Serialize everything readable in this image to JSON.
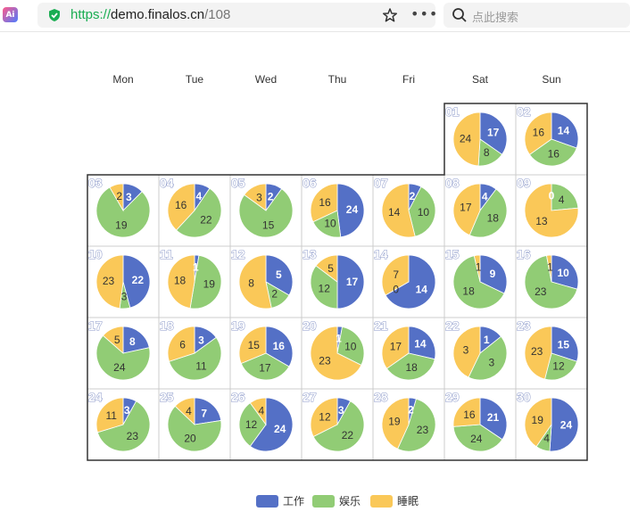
{
  "browser": {
    "url_protocol": "https://",
    "url_host": "demo.finalos.cn",
    "url_path": "/108",
    "search_placeholder": "点此搜索",
    "icons": [
      "app-logo-icon",
      "secure-shield-icon",
      "favorite-star-icon",
      "more-icon",
      "search-icon"
    ]
  },
  "colors": {
    "work": "#5470c6",
    "play": "#91cc75",
    "sleep": "#fac858"
  },
  "chart_data": {
    "type": "pie",
    "layout": "calendar",
    "weekdays": [
      "Mon",
      "Tue",
      "Wed",
      "Thu",
      "Fri",
      "Sat",
      "Sun"
    ],
    "series_names": [
      "工作",
      "娱乐",
      "睡眠"
    ],
    "days": [
      {
        "label": "01",
        "values": [
          17,
          8,
          24
        ]
      },
      {
        "label": "02",
        "values": [
          14,
          16,
          16
        ]
      },
      {
        "label": "03",
        "values": [
          3,
          19,
          2
        ]
      },
      {
        "label": "04",
        "values": [
          4,
          22,
          16
        ]
      },
      {
        "label": "05",
        "values": [
          2,
          15,
          3
        ]
      },
      {
        "label": "06",
        "values": [
          24,
          10,
          16
        ]
      },
      {
        "label": "07",
        "values": [
          2,
          10,
          14
        ]
      },
      {
        "label": "08",
        "values": [
          4,
          18,
          17
        ]
      },
      {
        "label": "09",
        "values": [
          0,
          4,
          13
        ]
      },
      {
        "label": "10",
        "values": [
          22,
          3,
          23
        ]
      },
      {
        "label": "11",
        "values": [
          1,
          19,
          18
        ]
      },
      {
        "label": "12",
        "values": [
          5,
          2,
          8
        ]
      },
      {
        "label": "13",
        "values": [
          17,
          12,
          5
        ]
      },
      {
        "label": "14",
        "values": [
          14,
          0,
          7
        ]
      },
      {
        "label": "15",
        "values": [
          9,
          18,
          1
        ]
      },
      {
        "label": "16",
        "values": [
          10,
          23,
          1
        ]
      },
      {
        "label": "17",
        "values": [
          8,
          24,
          5
        ]
      },
      {
        "label": "18",
        "values": [
          3,
          11,
          6
        ]
      },
      {
        "label": "19",
        "values": [
          16,
          17,
          15
        ]
      },
      {
        "label": "20",
        "values": [
          1,
          10,
          23
        ]
      },
      {
        "label": "21",
        "values": [
          14,
          18,
          17
        ]
      },
      {
        "label": "22",
        "values": [
          1,
          3,
          3
        ]
      },
      {
        "label": "23",
        "values": [
          15,
          12,
          23
        ]
      },
      {
        "label": "24",
        "values": [
          3,
          23,
          11
        ]
      },
      {
        "label": "25",
        "values": [
          7,
          20,
          4
        ]
      },
      {
        "label": "26",
        "values": [
          24,
          12,
          4
        ]
      },
      {
        "label": "27",
        "values": [
          3,
          22,
          12
        ]
      },
      {
        "label": "28",
        "values": [
          2,
          23,
          19
        ]
      },
      {
        "label": "29",
        "values": [
          21,
          24,
          16
        ]
      },
      {
        "label": "30",
        "values": [
          24,
          4,
          19
        ]
      }
    ]
  }
}
